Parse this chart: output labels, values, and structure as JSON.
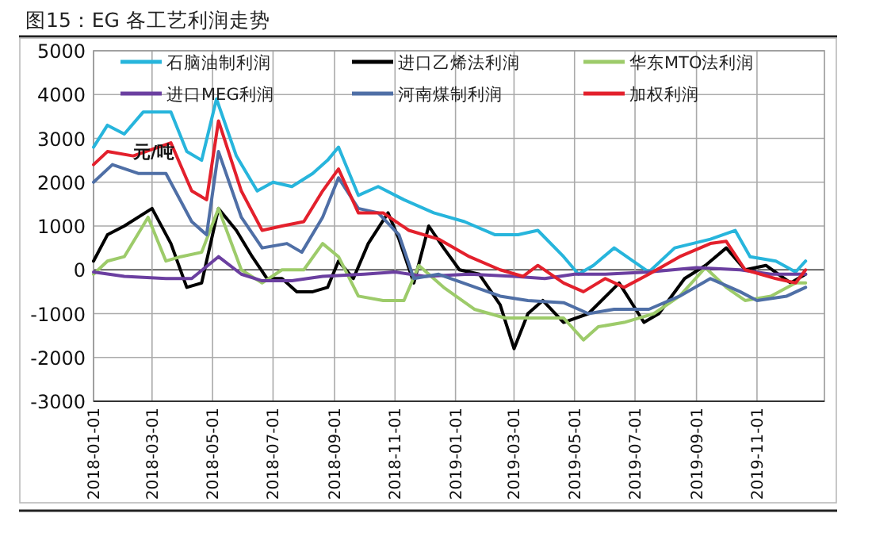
{
  "chart_data": {
    "type": "line",
    "title": "图15：EG 各工艺利润走势",
    "ylabel": "元/吨",
    "xlim": [
      "2018-01-01",
      "2020-01-08"
    ],
    "xticks": [
      "2018-01-01",
      "2018-03-01",
      "2018-05-01",
      "2018-07-01",
      "2018-09-01",
      "2018-11-01",
      "2019-01-01",
      "2019-03-01",
      "2019-05-01",
      "2019-07-01",
      "2019-09-01",
      "2019-11-01"
    ],
    "ylim": [
      -3000,
      5000
    ],
    "yticks": [
      -3000,
      -2000,
      -1000,
      0,
      1000,
      2000,
      3000,
      4000,
      5000
    ],
    "grid": true,
    "legend": "top",
    "marker": "none",
    "line_style": "solid",
    "series": [
      {
        "name": "石脑油制利润",
        "color": "#27b5dc",
        "x": [
          "2018-01-01",
          "2018-01-15",
          "2018-02-01",
          "2018-02-20",
          "2018-03-20",
          "2018-04-05",
          "2018-04-20",
          "2018-05-05",
          "2018-05-25",
          "2018-06-15",
          "2018-07-01",
          "2018-07-20",
          "2018-08-10",
          "2018-08-25",
          "2018-09-05",
          "2018-09-25",
          "2018-10-15",
          "2018-11-10",
          "2018-12-10",
          "2019-01-10",
          "2019-02-10",
          "2019-03-05",
          "2019-03-25",
          "2019-04-20",
          "2019-05-05",
          "2019-05-20",
          "2019-06-10",
          "2019-07-15",
          "2019-08-10",
          "2019-09-15",
          "2019-10-10",
          "2019-10-25",
          "2019-11-20",
          "2019-12-10",
          "2019-12-20"
        ],
        "values": [
          2800,
          3300,
          3100,
          3600,
          3600,
          2700,
          2500,
          3900,
          2600,
          1800,
          2000,
          1900,
          2200,
          2500,
          2800,
          1700,
          1900,
          1600,
          1300,
          1100,
          800,
          800,
          900,
          300,
          -100,
          100,
          500,
          -50,
          500,
          700,
          900,
          300,
          200,
          -50,
          200
        ]
      },
      {
        "name": "进口乙烯法利润",
        "color": "#000000",
        "x": [
          "2018-01-01",
          "2018-01-15",
          "2018-02-01",
          "2018-03-01",
          "2018-03-20",
          "2018-04-05",
          "2018-04-20",
          "2018-05-07",
          "2018-05-25",
          "2018-06-10",
          "2018-06-25",
          "2018-07-10",
          "2018-07-25",
          "2018-08-10",
          "2018-08-25",
          "2018-09-05",
          "2018-09-20",
          "2018-10-05",
          "2018-10-25",
          "2018-11-05",
          "2018-11-20",
          "2018-12-05",
          "2018-12-20",
          "2019-01-05",
          "2019-01-25",
          "2019-02-15",
          "2019-03-01",
          "2019-03-15",
          "2019-03-30",
          "2019-04-20",
          "2019-05-15",
          "2019-06-15",
          "2019-07-10",
          "2019-07-25",
          "2019-08-20",
          "2019-09-10",
          "2019-10-01",
          "2019-10-20",
          "2019-11-10",
          "2019-12-05",
          "2019-12-20"
        ],
        "values": [
          200,
          800,
          1000,
          1400,
          600,
          -400,
          -300,
          1400,
          900,
          300,
          -200,
          -200,
          -500,
          -500,
          -400,
          200,
          -200,
          600,
          1300,
          700,
          -300,
          1000,
          500,
          0,
          -100,
          -800,
          -1800,
          -1000,
          -700,
          -1200,
          -1000,
          -300,
          -1200,
          -1000,
          -200,
          100,
          500,
          0,
          100,
          -300,
          -100
        ]
      },
      {
        "name": "华东MTO法利润",
        "color": "#9dcb6a",
        "x": [
          "2018-01-01",
          "2018-01-15",
          "2018-02-01",
          "2018-02-25",
          "2018-03-15",
          "2018-03-30",
          "2018-04-20",
          "2018-05-07",
          "2018-05-30",
          "2018-06-20",
          "2018-07-10",
          "2018-08-01",
          "2018-08-20",
          "2018-09-05",
          "2018-09-25",
          "2018-10-20",
          "2018-11-10",
          "2018-11-25",
          "2018-12-20",
          "2019-01-20",
          "2019-02-20",
          "2019-03-20",
          "2019-04-20",
          "2019-05-10",
          "2019-05-25",
          "2019-06-20",
          "2019-07-20",
          "2019-08-15",
          "2019-09-10",
          "2019-10-01",
          "2019-10-20",
          "2019-11-15",
          "2019-12-10",
          "2019-12-20"
        ],
        "values": [
          -100,
          200,
          300,
          1200,
          200,
          300,
          400,
          1400,
          0,
          -300,
          0,
          0,
          600,
          300,
          -600,
          -700,
          -700,
          100,
          -400,
          -900,
          -1100,
          -1100,
          -1100,
          -1600,
          -1300,
          -1200,
          -1000,
          -600,
          50,
          -400,
          -700,
          -600,
          -300,
          -300
        ]
      },
      {
        "name": "进口MEG利润",
        "color": "#6b3fa0",
        "x": [
          "2018-01-01",
          "2018-02-01",
          "2018-03-15",
          "2018-04-10",
          "2018-05-07",
          "2018-05-30",
          "2018-06-20",
          "2018-07-20",
          "2018-08-20",
          "2018-10-01",
          "2018-11-01",
          "2018-12-01",
          "2019-01-15",
          "2019-03-01",
          "2019-04-01",
          "2019-05-01",
          "2019-06-01",
          "2019-07-15",
          "2019-09-01",
          "2019-10-15",
          "2019-11-15",
          "2019-12-20"
        ],
        "values": [
          -50,
          -150,
          -200,
          -200,
          300,
          -100,
          -250,
          -250,
          -150,
          -100,
          -50,
          -150,
          -100,
          -150,
          -200,
          -100,
          -100,
          -50,
          50,
          0,
          -100,
          -100
        ]
      },
      {
        "name": "河南煤制利润",
        "color": "#4f6fa6",
        "x": [
          "2018-01-01",
          "2018-01-20",
          "2018-02-15",
          "2018-03-15",
          "2018-04-10",
          "2018-04-25",
          "2018-05-07",
          "2018-05-30",
          "2018-06-20",
          "2018-07-15",
          "2018-07-30",
          "2018-08-20",
          "2018-09-05",
          "2018-09-25",
          "2018-10-15",
          "2018-11-05",
          "2018-11-20",
          "2018-12-15",
          "2019-01-15",
          "2019-02-15",
          "2019-03-15",
          "2019-04-20",
          "2019-05-15",
          "2019-06-10",
          "2019-07-15",
          "2019-08-15",
          "2019-09-15",
          "2019-10-15",
          "2019-11-01",
          "2019-12-01",
          "2019-12-20"
        ],
        "values": [
          2000,
          2400,
          2200,
          2200,
          1100,
          800,
          2700,
          1200,
          500,
          600,
          400,
          1200,
          2100,
          1400,
          1300,
          800,
          -200,
          -100,
          -350,
          -600,
          -700,
          -750,
          -1000,
          -900,
          -900,
          -600,
          -200,
          -500,
          -700,
          -600,
          -400
        ]
      },
      {
        "name": "加权利润",
        "color": "#e3202c",
        "x": [
          "2018-01-01",
          "2018-01-15",
          "2018-02-10",
          "2018-03-20",
          "2018-04-10",
          "2018-04-25",
          "2018-05-07",
          "2018-05-30",
          "2018-06-20",
          "2018-07-10",
          "2018-08-01",
          "2018-08-20",
          "2018-09-05",
          "2018-09-25",
          "2018-10-20",
          "2018-11-15",
          "2018-12-15",
          "2019-01-15",
          "2019-02-15",
          "2019-03-10",
          "2019-03-25",
          "2019-04-20",
          "2019-05-10",
          "2019-06-01",
          "2019-06-20",
          "2019-07-15",
          "2019-08-15",
          "2019-09-15",
          "2019-10-01",
          "2019-10-20",
          "2019-11-20",
          "2019-12-10",
          "2019-12-20"
        ],
        "values": [
          2400,
          2700,
          2600,
          2900,
          1800,
          1600,
          3400,
          1800,
          900,
          1000,
          1100,
          1800,
          2300,
          1300,
          1300,
          900,
          700,
          300,
          0,
          -150,
          100,
          -300,
          -500,
          -200,
          -400,
          -100,
          300,
          600,
          650,
          0,
          -200,
          -300,
          0
        ]
      }
    ]
  }
}
